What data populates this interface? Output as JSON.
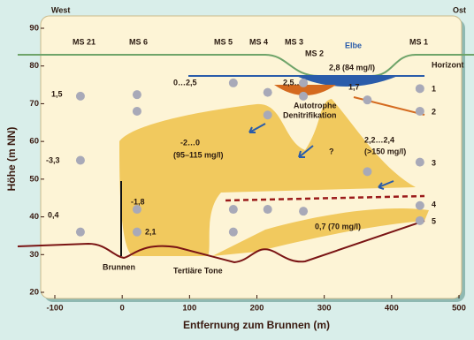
{
  "chart_data": {
    "type": "scatter",
    "xlabel": "Entfernung zum Brunnen (m)",
    "ylabel": "Höhe (m NN)",
    "xlim": [
      -100,
      500
    ],
    "ylim": [
      20,
      90
    ],
    "xticks": [
      -100,
      0,
      100,
      200,
      300,
      400,
      500
    ],
    "yticks": [
      20,
      30,
      40,
      50,
      60,
      70,
      80,
      90
    ],
    "color": "#a8a9b8",
    "x": [
      -62,
      22,
      22,
      -62,
      22,
      -62,
      22,
      165,
      216,
      216,
      269,
      269,
      165,
      216,
      269,
      165,
      364,
      442,
      442,
      442,
      364,
      442,
      442
    ],
    "values": [
      72,
      72.4,
      68,
      55,
      42,
      36,
      36,
      75.5,
      73,
      67,
      75.5,
      72,
      42,
      42,
      41.5,
      36,
      71,
      74,
      68,
      54.5,
      52,
      43,
      39
    ],
    "annotations": [
      "West",
      "Ost",
      "MS 21",
      "MS 6",
      "MS 5",
      "MS 4",
      "MS 3",
      "MS 2",
      "MS 1",
      "Elbe",
      "Horizont",
      "2,8 (84 mg/l)",
      "0…2,5",
      "2,5…3",
      "1,7",
      "1",
      "2",
      "1,5",
      "Autotrophe",
      "Denitrifikation",
      "-2…0",
      "(95–115 mg/l)",
      "?",
      "2,2…2,4",
      "(>150 mg/l)",
      "3",
      "-3,3",
      "0,4",
      "-1,8",
      "2,1",
      "4",
      "5",
      "0,7 (70 mg/l)",
      "Brunnen",
      "Tertiäre Tone"
    ]
  }
}
